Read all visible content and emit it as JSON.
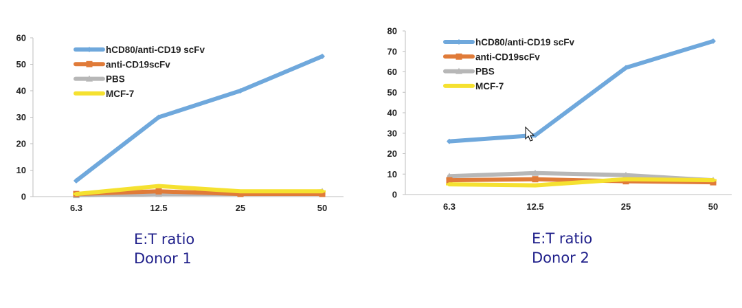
{
  "chart_data": [
    {
      "type": "line",
      "categories": [
        "6.3",
        "12.5",
        "25",
        "50"
      ],
      "ylim": [
        0,
        60
      ],
      "yticks": [
        0,
        10,
        20,
        30,
        40,
        50,
        60
      ],
      "xlabel": "E:T ratio",
      "subtitle": "Donor 1",
      "legend_position": "top-left",
      "grid": false,
      "series": [
        {
          "name": "hCD80/anti-CD19 scFv",
          "color": "#6fa8dc",
          "values": [
            6,
            30,
            40,
            53
          ]
        },
        {
          "name": "anti-CD19scFv",
          "color": "#e07b39",
          "values": [
            1,
            2,
            1,
            1
          ]
        },
        {
          "name": "PBS",
          "color": "#b7b7b7",
          "values": [
            0.5,
            1,
            1,
            2
          ]
        },
        {
          "name": "MCF-7",
          "color": "#f5e130",
          "values": [
            1,
            4,
            2,
            2
          ]
        }
      ]
    },
    {
      "type": "line",
      "categories": [
        "6.3",
        "12.5",
        "25",
        "50"
      ],
      "ylim": [
        0,
        80
      ],
      "yticks": [
        0,
        10,
        20,
        30,
        40,
        50,
        60,
        70,
        80
      ],
      "xlabel": "E:T ratio",
      "subtitle": "Donor 2",
      "legend_position": "top-left",
      "grid": false,
      "series": [
        {
          "name": "hCD80/anti-CD19 scFv",
          "color": "#6fa8dc",
          "values": [
            26,
            29,
            62,
            75
          ]
        },
        {
          "name": "anti-CD19scFv",
          "color": "#e07b39",
          "values": [
            7,
            7.5,
            6.5,
            6
          ]
        },
        {
          "name": "PBS",
          "color": "#b7b7b7",
          "values": [
            9,
            10.5,
            9.5,
            7
          ]
        },
        {
          "name": "MCF-7",
          "color": "#f5e130",
          "values": [
            5,
            4.5,
            7.5,
            7
          ]
        }
      ]
    }
  ]
}
